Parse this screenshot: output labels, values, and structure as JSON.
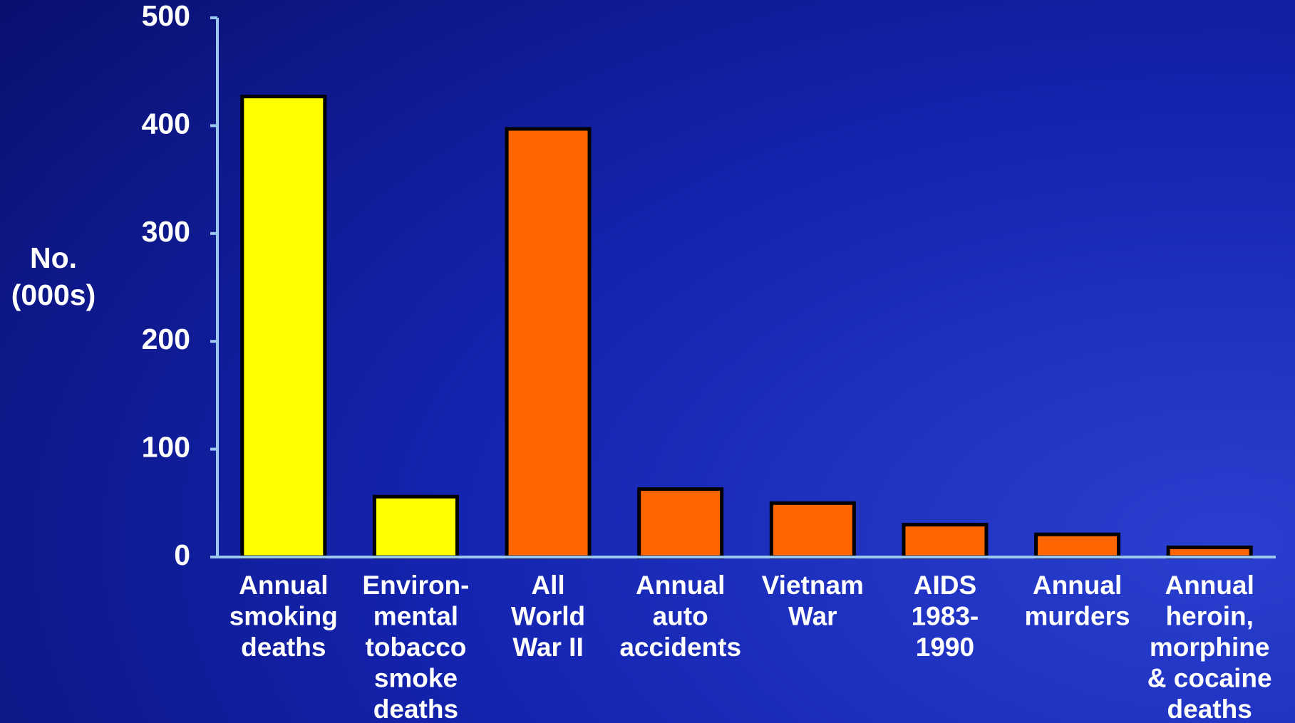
{
  "chart_data": {
    "type": "bar",
    "y_label": "No.\n(000s)",
    "categories": [
      "Annual\nsmoking\ndeaths",
      "Environ-\nmental\ntobacco\nsmoke\ndeaths",
      "All\nWorld\nWar II",
      "Annual\nauto\naccidents",
      "Vietnam\nWar",
      "AIDS\n1983-\n1990",
      "Annual\nmurders",
      "Annual\nheroin,\nmorphine\n& cocaine\ndeaths"
    ],
    "values": [
      427,
      56,
      397,
      63,
      50,
      30,
      21,
      9
    ],
    "colors": [
      "#ffff00",
      "#ffff00",
      "#ff6600",
      "#ff6600",
      "#ff6600",
      "#ff6600",
      "#ff6600",
      "#ff6600"
    ],
    "ylim": [
      0,
      500
    ],
    "yticks": [
      0,
      100,
      200,
      300,
      400,
      500
    ],
    "grid": false
  }
}
